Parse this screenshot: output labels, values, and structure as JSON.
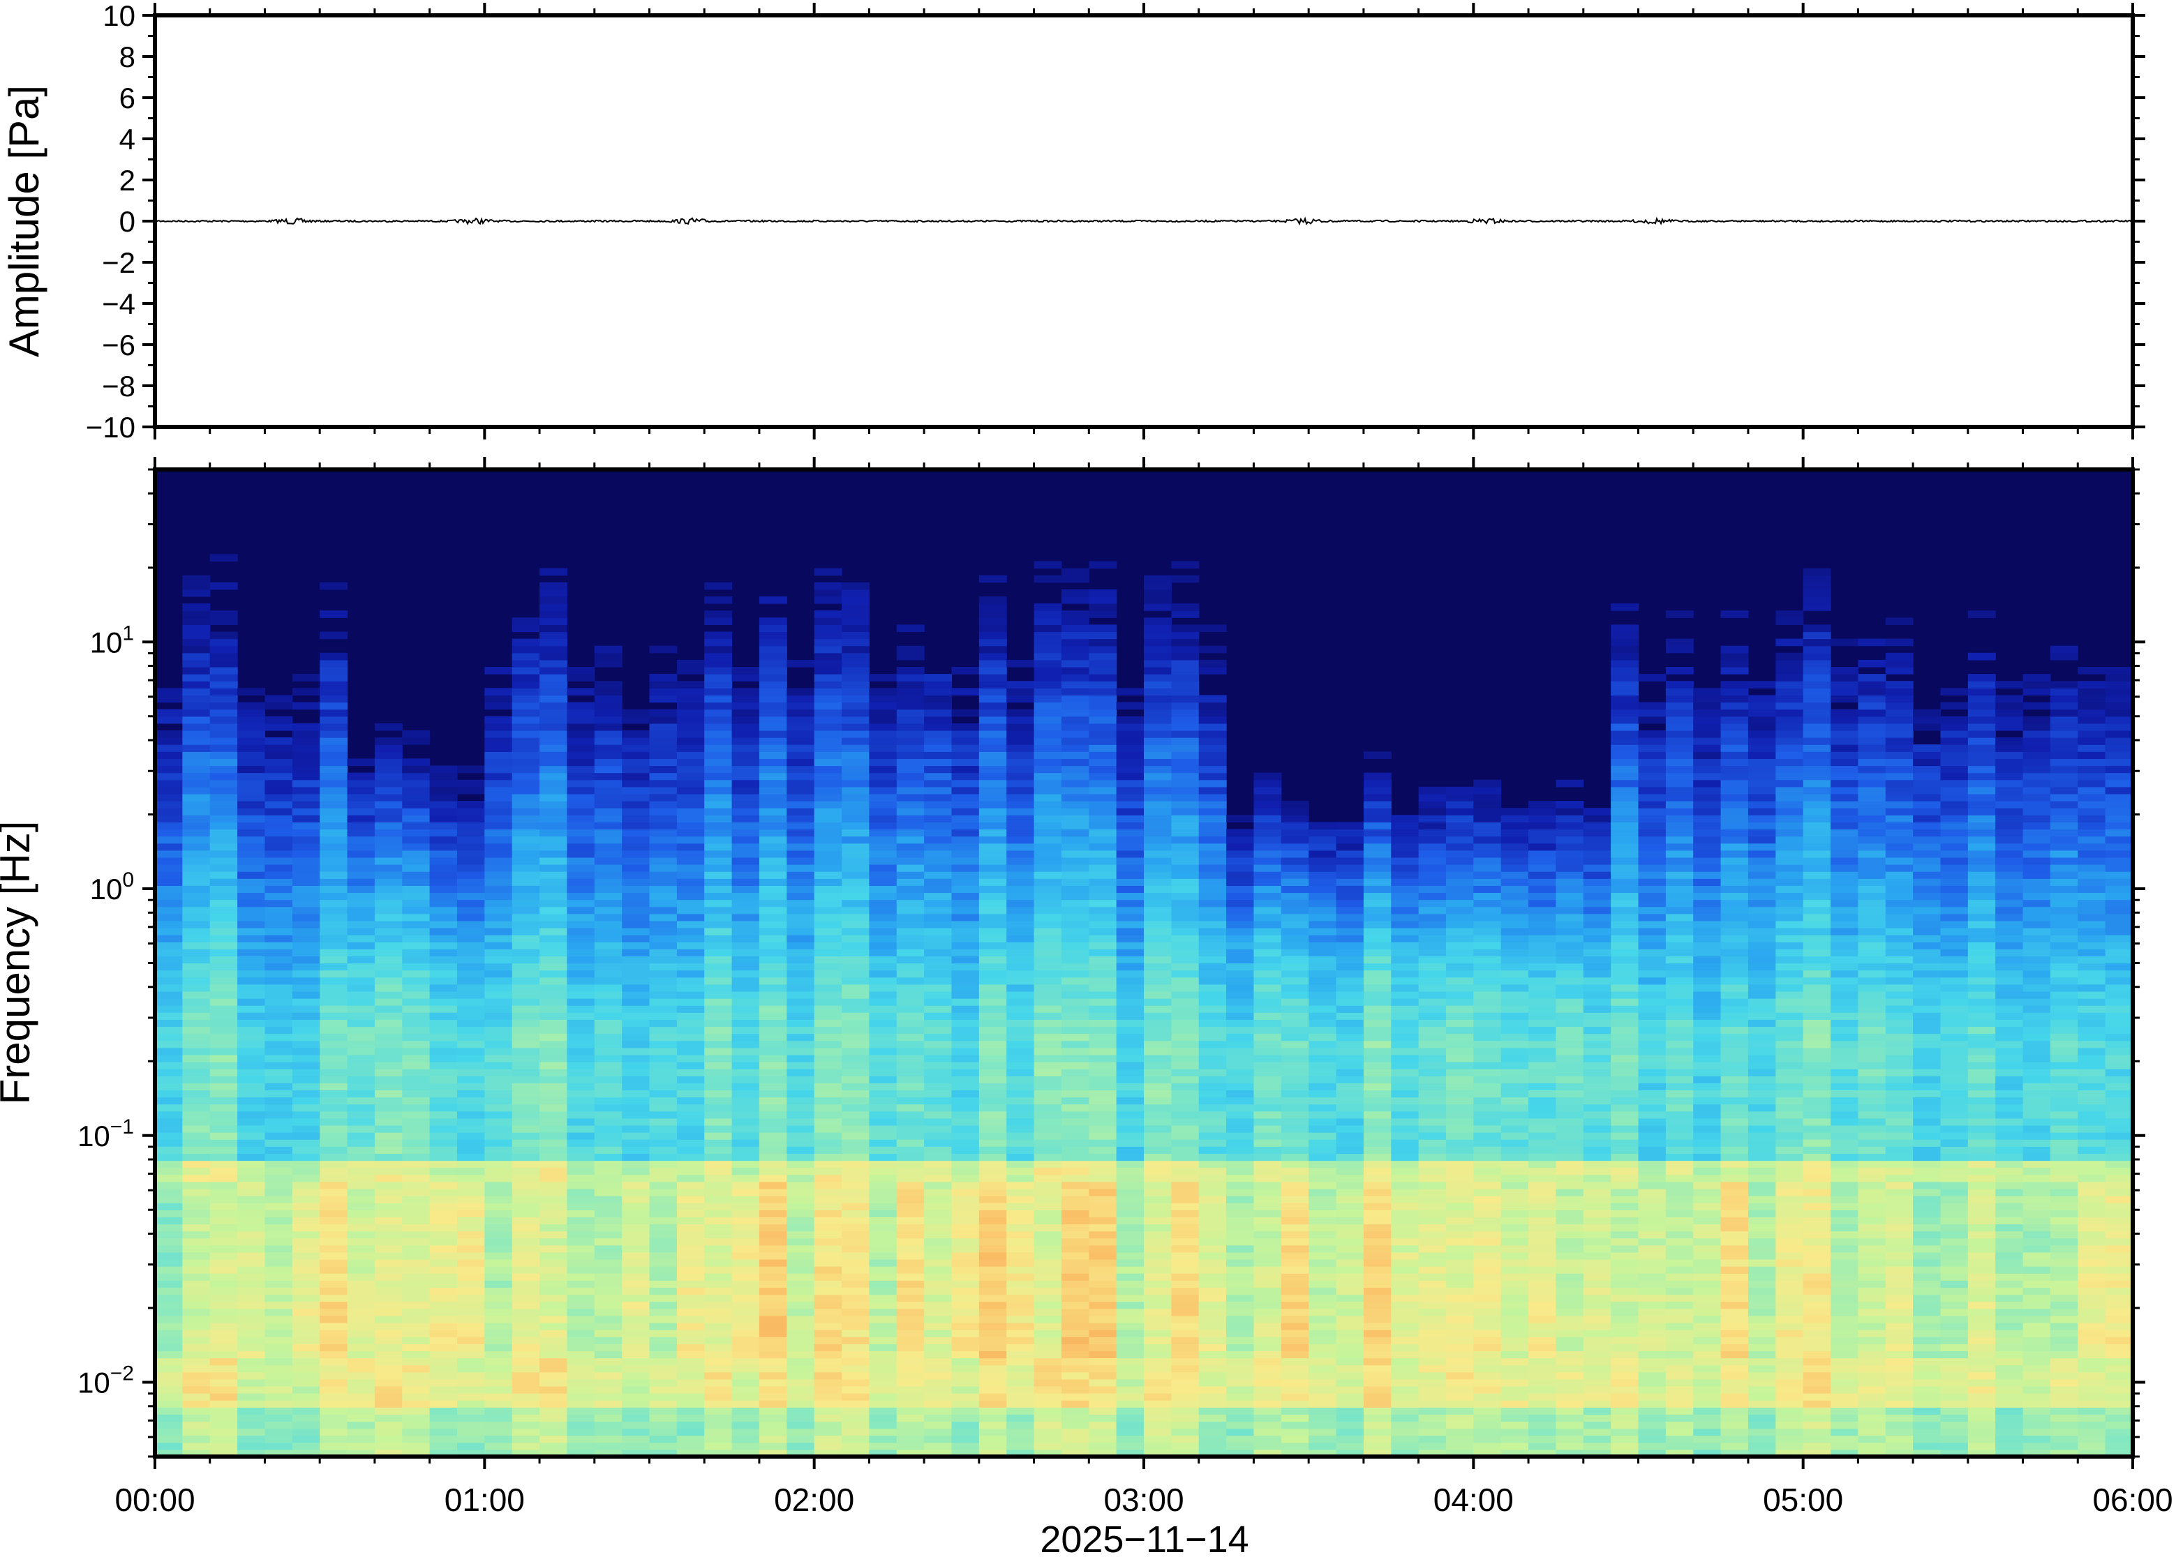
{
  "chart_data": [
    {
      "type": "line",
      "panel": "waveform",
      "ylabel": "Amplitude [Pa]",
      "ylim": [
        -10,
        10
      ],
      "yticks": [
        10,
        8,
        6,
        4,
        2,
        0,
        -2,
        -4,
        -6,
        -8,
        -10
      ],
      "ytick_labels": [
        "10",
        "8",
        "6",
        "4",
        "2",
        "0",
        "−2",
        "−4",
        "−6",
        "−8",
        "−10"
      ],
      "xlim": [
        "00:00",
        "06:00"
      ],
      "baseline": 0,
      "series": [
        {
          "values": [
            0
          ]
        }
      ],
      "line_color": "#000000",
      "grid": false
    },
    {
      "type": "heatmap",
      "panel": "spectrogram",
      "ylabel": "Frequency [Hz]",
      "yscale": "log",
      "ylim": [
        0.005,
        50
      ],
      "yticks": [
        {
          "base": "10",
          "exp": "1",
          "value": 10
        },
        {
          "base": "10",
          "exp": "0",
          "value": 1
        },
        {
          "base": "10",
          "exp": "−1",
          "value": 0.1
        },
        {
          "base": "10",
          "exp": "−2",
          "value": 0.01
        }
      ],
      "xlabel": "2025−11−14",
      "xticks": [
        "00:00",
        "01:00",
        "02:00",
        "03:00",
        "04:00",
        "05:00",
        "06:00"
      ],
      "colormap": [
        "#08085e",
        "#1020b0",
        "#1e5ee8",
        "#2aa6f0",
        "#46d6ea",
        "#86e8c0",
        "#c8f49a",
        "#f8ea8a",
        "#fac068",
        "#f09848"
      ],
      "grid": false
    }
  ],
  "axes": {
    "amp_label": "Amplitude [Pa]",
    "freq_label": "Frequency [Hz]",
    "date_label": "2025−11−14"
  }
}
